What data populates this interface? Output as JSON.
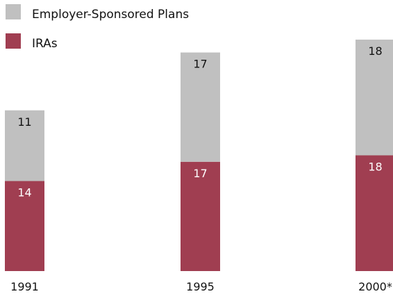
{
  "colors": {
    "employer": "#c0c0c0",
    "ira": "#a03e51",
    "label_on_gray": "#111111",
    "label_on_red": "#ffffff",
    "axis_text": "#111111"
  },
  "chart_data": {
    "type": "bar",
    "stacked": true,
    "title": "",
    "xlabel": "",
    "ylabel": "",
    "ylim": [
      0,
      36
    ],
    "grid": false,
    "legend": {
      "placement": "top-left",
      "entries": [
        {
          "series": "employer",
          "label": "Employer-Sponsored Plans"
        },
        {
          "series": "ira",
          "label": "IRAs"
        }
      ]
    },
    "categories": [
      "1991",
      "1995",
      "2000*"
    ],
    "series": [
      {
        "key": "ira",
        "name": "IRAs",
        "values": [
          14,
          17,
          18
        ]
      },
      {
        "key": "employer",
        "name": "Employer-Sponsored Plans",
        "values": [
          11,
          17,
          18
        ]
      }
    ]
  }
}
